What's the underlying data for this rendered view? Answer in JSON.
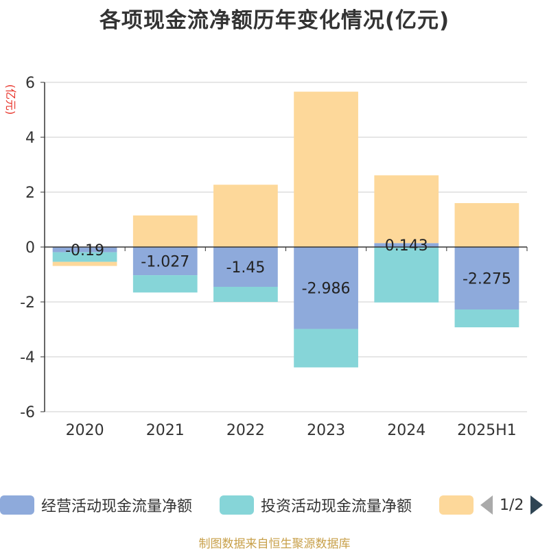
{
  "title": "各项现金流净额历年变化情况(亿元)",
  "source": "制图数据来自恒生聚源数据库",
  "legend": {
    "items": [
      {
        "label": "经营活动现金流量净额",
        "color": "#8eaadb"
      },
      {
        "label": "投资活动现金流量净额",
        "color": "#86d5d8"
      },
      {
        "label": "",
        "color": "#fdd89a"
      }
    ],
    "pager": "1/2"
  },
  "chart_data": {
    "type": "bar",
    "stacked": true,
    "title": "各项现金流净额历年变化情况(亿元)",
    "ylabel": "(亿元)",
    "ylim": [
      -6,
      6
    ],
    "yticks": [
      6,
      4,
      2,
      0,
      -2,
      -4,
      -6
    ],
    "categories": [
      "2020",
      "2021",
      "2022",
      "2023",
      "2024",
      "2025H1"
    ],
    "grid": true,
    "legend_position": "bottom",
    "series": [
      {
        "name": "经营活动现金流量净额",
        "color": "#8eaadb",
        "values": [
          -0.19,
          -1.027,
          -1.45,
          -2.986,
          0.143,
          -2.275
        ],
        "labels": [
          "-0.19",
          "-1.027",
          "-1.45",
          "-2.986",
          "0.143",
          "-2.275"
        ]
      },
      {
        "name": "投资活动现金流量净额",
        "color": "#86d5d8",
        "values": [
          -0.35,
          -0.63,
          -0.55,
          -1.4,
          -2.02,
          -0.65
        ]
      },
      {
        "name": "",
        "color": "#fdd89a",
        "values": [
          -0.15,
          1.15,
          2.27,
          5.66,
          2.47,
          1.6
        ]
      }
    ]
  }
}
